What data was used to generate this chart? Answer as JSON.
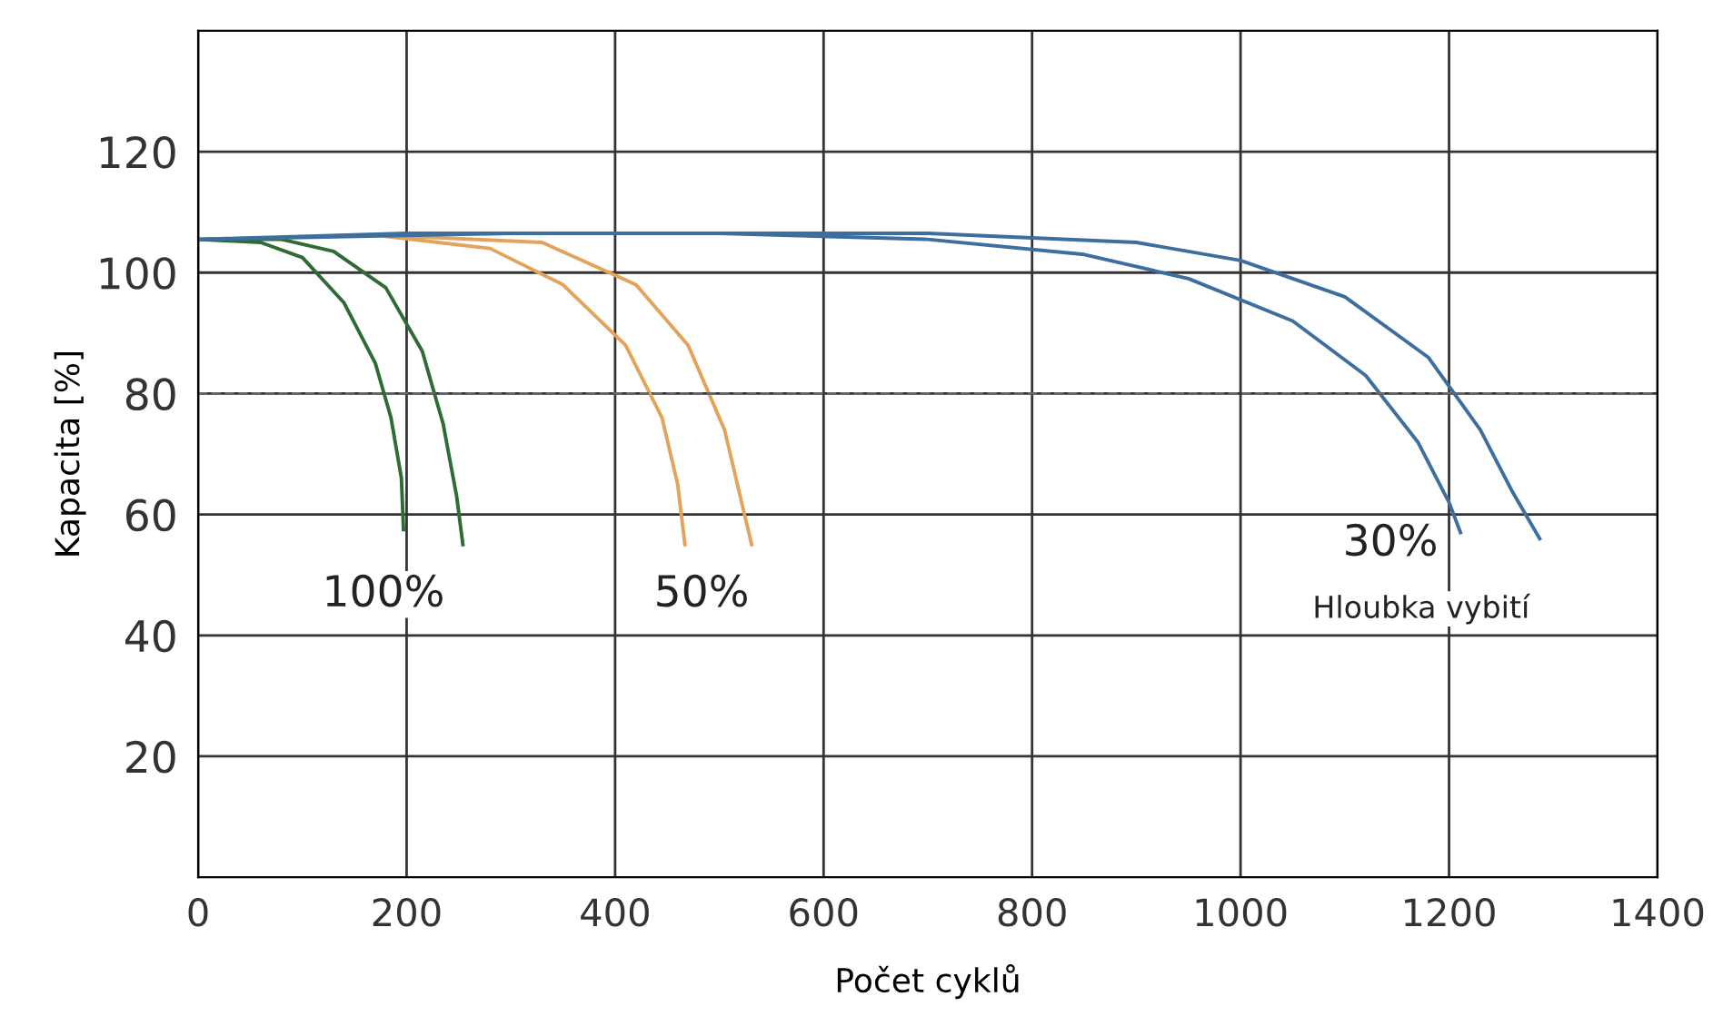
{
  "chart_data": {
    "type": "line",
    "xlabel": "Počet cyklů",
    "ylabel": "Kapacita [%]",
    "xlim": [
      0,
      1400
    ],
    "xticks": [
      0,
      200,
      400,
      600,
      800,
      1000,
      1200,
      1400
    ],
    "ylim": [
      0,
      140
    ],
    "yticks": [
      20,
      40,
      60,
      80,
      100,
      120
    ],
    "grid": true,
    "marker": "none",
    "line_style": "solid",
    "ref_lines": [
      {
        "axis": "y",
        "value": 80,
        "color": "#666666",
        "line_style": "dashed"
      }
    ],
    "series": [
      {
        "color": "#2e6b35",
        "x": [
          0,
          60,
          100,
          140,
          170,
          185,
          195,
          197
        ],
        "values": [
          105.5,
          105,
          102.5,
          95,
          85,
          76,
          66,
          57.5
        ]
      },
      {
        "color": "#2e6b35",
        "x": [
          0,
          80,
          130,
          180,
          215,
          235,
          248,
          254
        ],
        "values": [
          105.5,
          105.5,
          103.5,
          97.5,
          87,
          75,
          63,
          55
        ]
      },
      {
        "color": "#e3a35a",
        "x": [
          180,
          280,
          350,
          410,
          445,
          460,
          467
        ],
        "values": [
          106,
          104,
          98,
          88,
          76,
          65,
          55
        ]
      },
      {
        "color": "#e3a35a",
        "x": [
          200,
          330,
          420,
          470,
          505,
          520,
          531
        ],
        "values": [
          106,
          105,
          98,
          88,
          74,
          63,
          55
        ]
      },
      {
        "color": "#3d6f9e",
        "x": [
          0,
          200,
          500,
          700,
          850,
          950,
          1050,
          1120,
          1170,
          1200,
          1211
        ],
        "values": [
          105.5,
          106.5,
          106.5,
          105.5,
          103,
          99,
          92,
          83,
          72,
          62,
          57
        ]
      },
      {
        "color": "#3d6f9e",
        "x": [
          0,
          300,
          700,
          900,
          1000,
          1100,
          1180,
          1230,
          1260,
          1287
        ],
        "values": [
          105.5,
          106.5,
          106.5,
          105,
          102,
          96,
          86,
          74,
          64,
          56
        ]
      }
    ],
    "annotations": [
      "100%",
      "50%",
      "30%",
      "Hloubka vybití"
    ]
  }
}
